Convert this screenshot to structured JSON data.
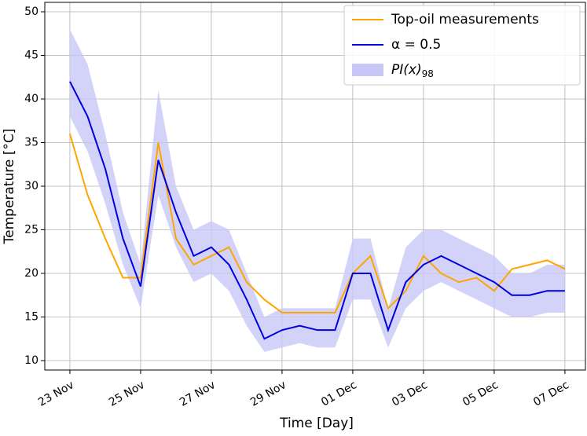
{
  "chart_data": {
    "type": "line",
    "xlabel": "Time [Day]",
    "ylabel": "Temperature [°C]",
    "x": [
      0,
      0.5,
      1,
      1.5,
      2,
      2.5,
      3,
      3.5,
      4,
      4.5,
      5,
      5.5,
      6,
      6.5,
      7,
      7.5,
      8,
      8.5,
      9,
      9.5,
      10,
      10.5,
      11,
      11.5,
      12,
      12.5,
      13,
      13.5,
      14
    ],
    "xlim": [
      -0.71,
      14.58
    ],
    "xticks": [
      {
        "value": 0,
        "label": "23 Nov"
      },
      {
        "value": 2,
        "label": "25 Nov"
      },
      {
        "value": 4,
        "label": "27 Nov"
      },
      {
        "value": 6,
        "label": "29 Nov"
      },
      {
        "value": 8,
        "label": "01 Dec"
      },
      {
        "value": 10,
        "label": "03 Dec"
      },
      {
        "value": 12,
        "label": "05 Dec"
      },
      {
        "value": 14,
        "label": "07 Dec"
      }
    ],
    "ylim": [
      8.92,
      51.08
    ],
    "yticks": [
      10,
      15,
      20,
      25,
      30,
      35,
      40,
      45,
      50
    ],
    "grid": true,
    "legend": "upper right",
    "series": [
      {
        "name": "Top-oil measurements",
        "color": "#ffa500",
        "values": [
          36,
          29,
          24,
          19.5,
          19.5,
          35,
          24,
          21,
          22,
          23,
          19,
          17,
          15.5,
          15.5,
          15.5,
          15.5,
          20,
          22,
          16,
          18,
          22,
          20,
          19,
          19.5,
          18,
          20.5,
          21,
          21.5,
          20.5
        ]
      },
      {
        "name": "α = 0.5",
        "color": "#0000dd",
        "values": [
          42,
          38,
          32,
          24,
          18.5,
          33,
          27,
          22,
          23,
          21,
          17,
          12.5,
          13.5,
          14,
          13.5,
          13.5,
          20,
          20,
          13.5,
          19,
          21,
          22,
          21,
          20,
          19,
          17.5,
          17.5,
          18,
          18
        ]
      },
      {
        "name": "PI(x)",
        "name_subscript": "98",
        "type": "band",
        "color": "#c8c8f8",
        "upper": [
          48,
          44,
          36,
          27,
          21,
          41,
          30,
          25,
          26,
          25,
          20,
          15,
          16,
          16,
          16,
          16,
          24,
          24,
          16,
          23,
          25,
          25,
          24,
          23,
          22,
          20,
          20,
          21,
          21
        ],
        "lower": [
          38,
          34,
          28,
          21,
          16,
          29,
          23,
          19,
          20,
          18,
          14,
          11,
          11.5,
          12,
          11.5,
          11.5,
          17,
          17,
          11.5,
          16,
          18,
          19,
          18,
          17,
          16,
          15,
          15,
          15.5,
          15.5
        ]
      }
    ]
  }
}
